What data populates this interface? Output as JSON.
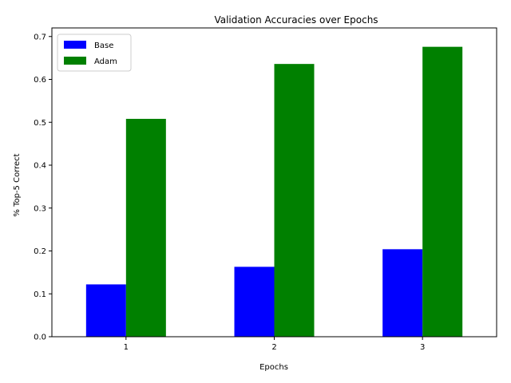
{
  "chart_data": {
    "type": "bar",
    "title": "Validation Accuracies over Epochs",
    "xlabel": "Epochs",
    "ylabel": "% Top-5 Correct",
    "categories": [
      "1",
      "2",
      "3"
    ],
    "ylim": [
      0,
      0.72
    ],
    "yticks": [
      "0.0",
      "0.1",
      "0.2",
      "0.3",
      "0.4",
      "0.5",
      "0.6",
      "0.7"
    ],
    "ytick_values": [
      0,
      0.1,
      0.2,
      0.3,
      0.4,
      0.5,
      0.6,
      0.7
    ],
    "grid": false,
    "legend_position": "top-left",
    "series": [
      {
        "name": "Base",
        "color": "#0000ff",
        "values": [
          0.122,
          0.163,
          0.204
        ]
      },
      {
        "name": "Adam",
        "color": "#008000",
        "values": [
          0.508,
          0.636,
          0.676
        ]
      }
    ]
  }
}
